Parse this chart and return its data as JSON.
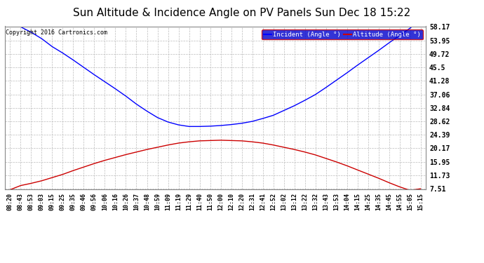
{
  "title": "Sun Altitude & Incidence Angle on PV Panels Sun Dec 18 15:22",
  "copyright": "Copyright 2016 Cartronics.com",
  "yticks": [
    7.51,
    11.73,
    15.95,
    20.17,
    24.39,
    28.62,
    32.84,
    37.06,
    41.28,
    45.5,
    49.72,
    53.95,
    58.17
  ],
  "xtick_labels": [
    "08:20",
    "08:43",
    "08:53",
    "09:03",
    "09:15",
    "09:25",
    "09:35",
    "09:46",
    "09:56",
    "10:06",
    "10:16",
    "10:26",
    "10:37",
    "10:48",
    "10:59",
    "11:09",
    "11:19",
    "11:29",
    "11:40",
    "11:50",
    "12:00",
    "12:10",
    "12:20",
    "12:31",
    "12:41",
    "12:52",
    "13:02",
    "13:12",
    "13:22",
    "13:32",
    "13:43",
    "13:53",
    "14:04",
    "14:15",
    "14:25",
    "14:35",
    "14:45",
    "14:55",
    "15:05",
    "15:15"
  ],
  "incident_color": "#0000ff",
  "altitude_color": "#cc0000",
  "background_color": "#ffffff",
  "grid_color": "#bbbbbb",
  "title_fontsize": 11,
  "legend_bg": "#0000cc",
  "incident_label": "Incident (Angle °)",
  "altitude_label": "Altitude (Angle °)",
  "incident_data": [
    62.5,
    58.2,
    56.5,
    54.5,
    52.0,
    50.0,
    47.8,
    45.5,
    43.2,
    41.0,
    38.8,
    36.5,
    34.0,
    31.8,
    29.8,
    28.4,
    27.5,
    27.0,
    27.0,
    27.1,
    27.3,
    27.6,
    28.0,
    28.6,
    29.5,
    30.5,
    32.0,
    33.5,
    35.2,
    37.0,
    39.2,
    41.5,
    43.8,
    46.2,
    48.5,
    50.8,
    53.2,
    55.5,
    57.8,
    60.5
  ],
  "altitude_data": [
    7.2,
    8.5,
    9.2,
    10.0,
    11.0,
    12.0,
    13.2,
    14.3,
    15.4,
    16.4,
    17.3,
    18.2,
    19.0,
    19.8,
    20.5,
    21.2,
    21.8,
    22.2,
    22.5,
    22.6,
    22.7,
    22.6,
    22.5,
    22.2,
    21.8,
    21.2,
    20.5,
    19.8,
    19.0,
    18.1,
    17.0,
    15.9,
    14.7,
    13.4,
    12.1,
    10.8,
    9.4,
    8.1,
    7.0,
    7.51
  ],
  "ymin": 7.51,
  "ymax": 58.17
}
